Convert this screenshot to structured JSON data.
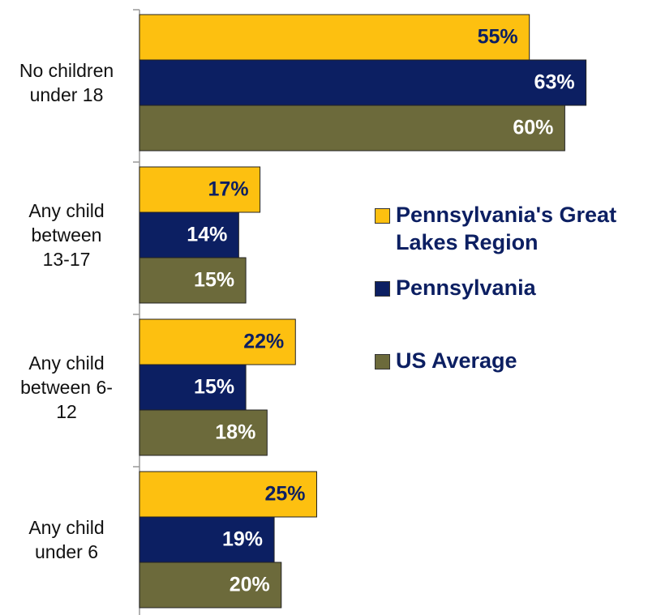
{
  "chart_data": {
    "type": "hbar",
    "categories": [
      "No children under 18",
      "Any child between 13-17",
      "Any child between 6-12",
      "Any child under 6"
    ],
    "series": [
      {
        "name": "Pennsylvania's Great Lakes Region",
        "color": "#fdc010",
        "values": [
          55,
          17,
          22,
          25
        ],
        "value_labels": [
          "55%",
          "17%",
          "22%",
          "25%"
        ]
      },
      {
        "name": "Pennsylvania",
        "color": "#0c1f62",
        "values": [
          63,
          14,
          15,
          19
        ],
        "value_labels": [
          "63%",
          "14%",
          "15%",
          "19%"
        ]
      },
      {
        "name": "US Average",
        "color": "#6c6a3b",
        "values": [
          60,
          15,
          18,
          20
        ],
        "value_labels": [
          "60%",
          "15%",
          "18%",
          "20%"
        ]
      }
    ],
    "xlim": [
      0,
      73
    ]
  }
}
